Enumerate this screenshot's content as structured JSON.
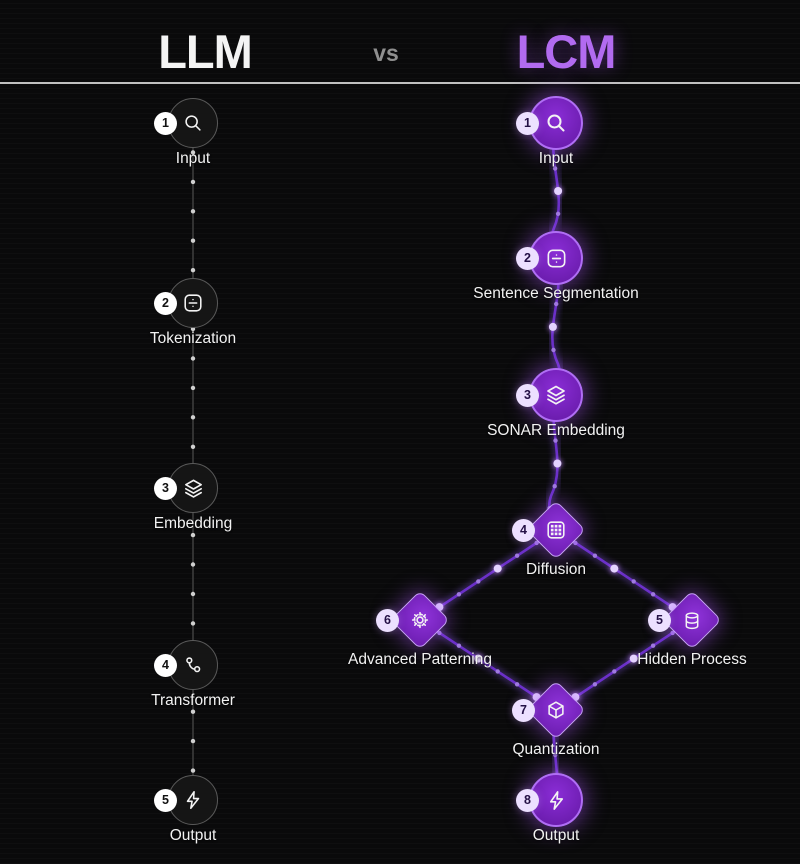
{
  "header": {
    "llm_title": "LLM",
    "vs_label": "vs",
    "lcm_title": "LCM"
  },
  "colors": {
    "background": "#0a0a0b",
    "divider": "#e1e1e1",
    "llm_title_text": "#f4f4f4",
    "vs_text": "#8f8f8f",
    "lcm_accent": "#b26bf0",
    "llm_node_fill": "#151515",
    "llm_node_border": "#5a5a5a",
    "llm_connector": "#3c3c3c",
    "llm_connector_dot": "#d0d0d0",
    "lcm_node_fill": "#7c22cc",
    "lcm_node_border": "#b06ef5",
    "lcm_connector": "#6b30c9",
    "lcm_connector_dot_small": "#a07ae0",
    "lcm_connector_dot_big": "#e4d3ff",
    "badge_llm_bg": "#ffffff",
    "badge_lcm_bg": "#ece0ff",
    "label_text": "#f2f2f2"
  },
  "llm": {
    "title": "LLM",
    "nodes": [
      {
        "num": "1",
        "label": "Input",
        "icon": "search-icon"
      },
      {
        "num": "2",
        "label": "Tokenization",
        "icon": "divide-square-icon"
      },
      {
        "num": "3",
        "label": "Embedding",
        "icon": "layers-icon"
      },
      {
        "num": "4",
        "label": "Transformer",
        "icon": "workflow-icon"
      },
      {
        "num": "5",
        "label": "Output",
        "icon": "lightning-icon"
      }
    ]
  },
  "lcm": {
    "title": "LCM",
    "nodes": [
      {
        "num": "1",
        "label": "Input",
        "icon": "search-icon",
        "shape": "circle"
      },
      {
        "num": "2",
        "label": "Sentence Segmentation",
        "icon": "divide-square-icon",
        "shape": "circle"
      },
      {
        "num": "3",
        "label": "SONAR Embedding",
        "icon": "layers-icon",
        "shape": "circle"
      },
      {
        "num": "4",
        "label": "Diffusion",
        "icon": "grid-icon",
        "shape": "diamond"
      },
      {
        "num": "5",
        "label": "Hidden Process",
        "icon": "database-icon",
        "shape": "diamond"
      },
      {
        "num": "6",
        "label": "Advanced Patterning",
        "icon": "gear-icon",
        "shape": "diamond"
      },
      {
        "num": "7",
        "label": "Quantization",
        "icon": "cube-icon",
        "shape": "diamond"
      },
      {
        "num": "8",
        "label": "Output",
        "icon": "lightning-icon",
        "shape": "circle"
      }
    ]
  }
}
